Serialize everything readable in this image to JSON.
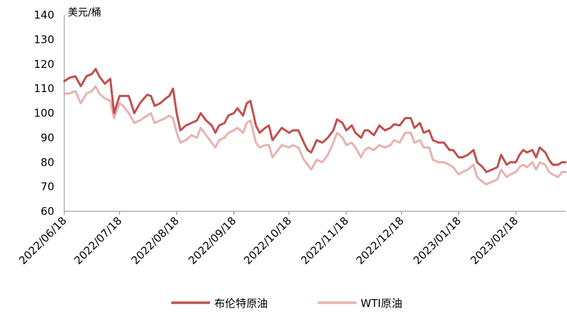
{
  "chart_data": {
    "type": "line",
    "unit_label": "美元/桶",
    "ylim": [
      60,
      140
    ],
    "yticks": [
      140,
      130,
      120,
      110,
      100,
      90,
      80,
      70,
      60
    ],
    "x_tick_labels": [
      "2022/06/18",
      "2022/07/18",
      "2022/08/18",
      "2022/09/18",
      "2022/10/18",
      "2022/11/18",
      "2022/12/18",
      "2023/01/18",
      "2023/02/18"
    ],
    "x_start": "2022/06/18",
    "x_end": "2023/03/17",
    "grid": false,
    "legend_position": "bottom",
    "series": [
      {
        "name": "布伦特原油",
        "color": "#c0504d",
        "points": [
          [
            "2022/06/18",
            113
          ],
          [
            "2022/06/21",
            114.5
          ],
          [
            "2022/06/24",
            115
          ],
          [
            "2022/06/27",
            111
          ],
          [
            "2022/06/30",
            115
          ],
          [
            "2022/07/03",
            116
          ],
          [
            "2022/07/05",
            118
          ],
          [
            "2022/07/07",
            115
          ],
          [
            "2022/07/10",
            112
          ],
          [
            "2022/07/13",
            114
          ],
          [
            "2022/07/15",
            100
          ],
          [
            "2022/07/18",
            107
          ],
          [
            "2022/07/20",
            107
          ],
          [
            "2022/07/23",
            107
          ],
          [
            "2022/07/26",
            100
          ],
          [
            "2022/07/29",
            104
          ],
          [
            "2022/08/02",
            107.5
          ],
          [
            "2022/08/04",
            107
          ],
          [
            "2022/08/06",
            103
          ],
          [
            "2022/08/09",
            104
          ],
          [
            "2022/08/12",
            106
          ],
          [
            "2022/08/14",
            107
          ],
          [
            "2022/08/16",
            110
          ],
          [
            "2022/08/18",
            100
          ],
          [
            "2022/08/20",
            93
          ],
          [
            "2022/08/23",
            95
          ],
          [
            "2022/08/26",
            96
          ],
          [
            "2022/08/29",
            97
          ],
          [
            "2022/08/31",
            100
          ],
          [
            "2022/09/03",
            97
          ],
          [
            "2022/09/06",
            95
          ],
          [
            "2022/09/08",
            92
          ],
          [
            "2022/09/10",
            95
          ],
          [
            "2022/09/13",
            96
          ],
          [
            "2022/09/15",
            99
          ],
          [
            "2022/09/18",
            100
          ],
          [
            "2022/09/20",
            102
          ],
          [
            "2022/09/23",
            99
          ],
          [
            "2022/09/25",
            104
          ],
          [
            "2022/09/27",
            105
          ],
          [
            "2022/09/30",
            95
          ],
          [
            "2022/10/02",
            92
          ],
          [
            "2022/10/05",
            94
          ],
          [
            "2022/10/07",
            95
          ],
          [
            "2022/10/09",
            89
          ],
          [
            "2022/10/12",
            92
          ],
          [
            "2022/10/14",
            94
          ],
          [
            "2022/10/18",
            92
          ],
          [
            "2022/10/20",
            93
          ],
          [
            "2022/10/23",
            93
          ],
          [
            "2022/10/26",
            88
          ],
          [
            "2022/10/28",
            85
          ],
          [
            "2022/10/30",
            84
          ],
          [
            "2022/11/02",
            89
          ],
          [
            "2022/11/05",
            88
          ],
          [
            "2022/11/08",
            90
          ],
          [
            "2022/11/11",
            93
          ],
          [
            "2022/11/13",
            97.5
          ],
          [
            "2022/11/16",
            96
          ],
          [
            "2022/11/18",
            93
          ],
          [
            "2022/11/21",
            95
          ],
          [
            "2022/11/23",
            92
          ],
          [
            "2022/11/26",
            90
          ],
          [
            "2022/11/28",
            93
          ],
          [
            "2022/11/30",
            93
          ],
          [
            "2022/12/03",
            91
          ],
          [
            "2022/12/06",
            95
          ],
          [
            "2022/12/09",
            93
          ],
          [
            "2022/12/12",
            94
          ],
          [
            "2022/12/14",
            95.5
          ],
          [
            "2022/12/17",
            95
          ],
          [
            "2022/12/20",
            98
          ],
          [
            "2022/12/23",
            98
          ],
          [
            "2022/12/25",
            94
          ],
          [
            "2022/12/28",
            96
          ],
          [
            "2022/12/30",
            92
          ],
          [
            "2023/01/02",
            93
          ],
          [
            "2023/01/04",
            89
          ],
          [
            "2023/01/07",
            88
          ],
          [
            "2023/01/10",
            88
          ],
          [
            "2023/01/13",
            85
          ],
          [
            "2023/01/15",
            85
          ],
          [
            "2023/01/18",
            82
          ],
          [
            "2023/01/20",
            82
          ],
          [
            "2023/01/23",
            83
          ],
          [
            "2023/01/26",
            85
          ],
          [
            "2023/01/28",
            80
          ],
          [
            "2023/01/31",
            78
          ],
          [
            "2023/02/02",
            76
          ],
          [
            "2023/02/05",
            77
          ],
          [
            "2023/02/08",
            78
          ],
          [
            "2023/02/10",
            83
          ],
          [
            "2023/02/13",
            79
          ],
          [
            "2023/02/15",
            80
          ],
          [
            "2023/02/18",
            80
          ],
          [
            "2023/02/20",
            83
          ],
          [
            "2023/02/22",
            85
          ],
          [
            "2023/02/24",
            84
          ],
          [
            "2023/02/27",
            85
          ],
          [
            "2023/03/01",
            82
          ],
          [
            "2023/03/03",
            86
          ],
          [
            "2023/03/06",
            84
          ],
          [
            "2023/03/08",
            81
          ],
          [
            "2023/03/10",
            79
          ],
          [
            "2023/03/13",
            79
          ],
          [
            "2023/03/15",
            80
          ],
          [
            "2023/03/17",
            80
          ]
        ]
      },
      {
        "name": "WTI原油",
        "color": "#e6b3b1",
        "points": [
          [
            "2022/06/18",
            108
          ],
          [
            "2022/06/21",
            108
          ],
          [
            "2022/06/24",
            109
          ],
          [
            "2022/06/27",
            104
          ],
          [
            "2022/06/30",
            108
          ],
          [
            "2022/07/03",
            109
          ],
          [
            "2022/07/05",
            111
          ],
          [
            "2022/07/07",
            108
          ],
          [
            "2022/07/10",
            106
          ],
          [
            "2022/07/13",
            105
          ],
          [
            "2022/07/15",
            98
          ],
          [
            "2022/07/18",
            104
          ],
          [
            "2022/07/20",
            103
          ],
          [
            "2022/07/23",
            100
          ],
          [
            "2022/07/26",
            96
          ],
          [
            "2022/07/29",
            97
          ],
          [
            "2022/08/02",
            99
          ],
          [
            "2022/08/04",
            100
          ],
          [
            "2022/08/06",
            96
          ],
          [
            "2022/08/09",
            97
          ],
          [
            "2022/08/12",
            98
          ],
          [
            "2022/08/14",
            99
          ],
          [
            "2022/08/16",
            98
          ],
          [
            "2022/08/18",
            92
          ],
          [
            "2022/08/20",
            88
          ],
          [
            "2022/08/23",
            89
          ],
          [
            "2022/08/26",
            91
          ],
          [
            "2022/08/29",
            90
          ],
          [
            "2022/08/31",
            94
          ],
          [
            "2022/09/03",
            91
          ],
          [
            "2022/09/06",
            88
          ],
          [
            "2022/09/08",
            86
          ],
          [
            "2022/09/10",
            89
          ],
          [
            "2022/09/13",
            90
          ],
          [
            "2022/09/15",
            92
          ],
          [
            "2022/09/18",
            93
          ],
          [
            "2022/09/20",
            94
          ],
          [
            "2022/09/23",
            92
          ],
          [
            "2022/09/25",
            96
          ],
          [
            "2022/09/27",
            97
          ],
          [
            "2022/09/30",
            88
          ],
          [
            "2022/10/02",
            86
          ],
          [
            "2022/10/05",
            87
          ],
          [
            "2022/10/07",
            87
          ],
          [
            "2022/10/09",
            82
          ],
          [
            "2022/10/12",
            85
          ],
          [
            "2022/10/14",
            87
          ],
          [
            "2022/10/18",
            86
          ],
          [
            "2022/10/20",
            87
          ],
          [
            "2022/10/23",
            86
          ],
          [
            "2022/10/26",
            81
          ],
          [
            "2022/10/28",
            79
          ],
          [
            "2022/10/30",
            77
          ],
          [
            "2022/11/02",
            81
          ],
          [
            "2022/11/05",
            80
          ],
          [
            "2022/11/08",
            83
          ],
          [
            "2022/11/11",
            88
          ],
          [
            "2022/11/13",
            92
          ],
          [
            "2022/11/16",
            90
          ],
          [
            "2022/11/18",
            87
          ],
          [
            "2022/11/21",
            88
          ],
          [
            "2022/11/23",
            86
          ],
          [
            "2022/11/26",
            82
          ],
          [
            "2022/11/28",
            85
          ],
          [
            "2022/11/30",
            86
          ],
          [
            "2022/12/03",
            85
          ],
          [
            "2022/12/06",
            87
          ],
          [
            "2022/12/09",
            86
          ],
          [
            "2022/12/12",
            87
          ],
          [
            "2022/12/14",
            89
          ],
          [
            "2022/12/17",
            88
          ],
          [
            "2022/12/20",
            92
          ],
          [
            "2022/12/23",
            92
          ],
          [
            "2022/12/25",
            88
          ],
          [
            "2022/12/28",
            89
          ],
          [
            "2022/12/30",
            86
          ],
          [
            "2023/01/02",
            86
          ],
          [
            "2023/01/04",
            81
          ],
          [
            "2023/01/07",
            80
          ],
          [
            "2023/01/10",
            80
          ],
          [
            "2023/01/13",
            79
          ],
          [
            "2023/01/15",
            78
          ],
          [
            "2023/01/18",
            75
          ],
          [
            "2023/01/20",
            76
          ],
          [
            "2023/01/23",
            77
          ],
          [
            "2023/01/26",
            79
          ],
          [
            "2023/01/28",
            74
          ],
          [
            "2023/01/31",
            72
          ],
          [
            "2023/02/02",
            71
          ],
          [
            "2023/02/05",
            72
          ],
          [
            "2023/02/08",
            73
          ],
          [
            "2023/02/10",
            77
          ],
          [
            "2023/02/13",
            74
          ],
          [
            "2023/02/15",
            75
          ],
          [
            "2023/02/18",
            76
          ],
          [
            "2023/02/20",
            78
          ],
          [
            "2023/02/22",
            79
          ],
          [
            "2023/02/24",
            78
          ],
          [
            "2023/02/27",
            80
          ],
          [
            "2023/03/01",
            77
          ],
          [
            "2023/03/03",
            80
          ],
          [
            "2023/03/06",
            79
          ],
          [
            "2023/03/08",
            76
          ],
          [
            "2023/03/10",
            75
          ],
          [
            "2023/03/13",
            74
          ],
          [
            "2023/03/15",
            76
          ],
          [
            "2023/03/17",
            76
          ]
        ]
      }
    ]
  },
  "legend": {
    "brent_label": "布伦特原油",
    "wti_label": "WTI原油"
  }
}
